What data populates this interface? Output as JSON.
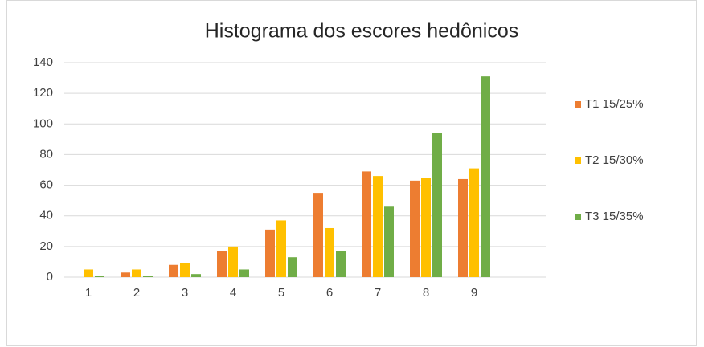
{
  "chart_data": {
    "type": "bar",
    "title": "Histograma dos escores hedônicos",
    "categories": [
      "1",
      "2",
      "3",
      "4",
      "5",
      "6",
      "7",
      "8",
      "9",
      null
    ],
    "series": [
      {
        "name": "T1 15/25%",
        "color": "#ed7d31",
        "values": [
          0,
          3,
          8,
          17,
          31,
          55,
          69,
          63,
          64,
          null
        ]
      },
      {
        "name": "T2 15/30%",
        "color": "#ffc000",
        "values": [
          5,
          5,
          9,
          20,
          37,
          32,
          66,
          65,
          71,
          null
        ]
      },
      {
        "name": "T3 15/35%",
        "color": "#70ad47",
        "values": [
          1,
          1,
          2,
          5,
          13,
          17,
          46,
          94,
          131,
          null
        ]
      }
    ],
    "ylim": [
      0,
      140
    ],
    "yticks": [
      0,
      20,
      40,
      60,
      80,
      100,
      120,
      140
    ],
    "grid": true,
    "legend": "right"
  }
}
